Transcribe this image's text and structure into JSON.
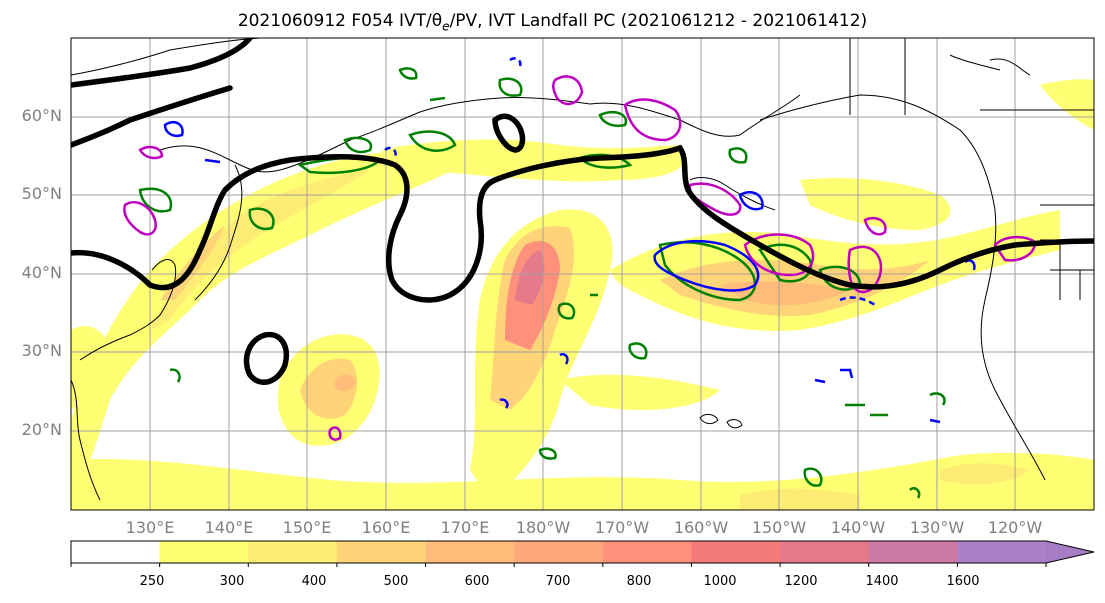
{
  "title": "2021060912 F054 IVT/θe/PV, IVT Landfall PC (2021061212 - 2021061412)",
  "map": {
    "lat_labels": [
      "60°N",
      "50°N",
      "40°N",
      "30°N",
      "20°N"
    ],
    "lon_labels": [
      "130°E",
      "140°E",
      "150°E",
      "160°E",
      "170°E",
      "180°W",
      "170°W",
      "160°W",
      "150°W",
      "140°W",
      "130°W",
      "120°W"
    ],
    "grid": true,
    "colors": {
      "ivt_contour": "#000000",
      "pv_contour_green": "#008000",
      "pv_contour_blue": "#0000ff",
      "theta_e_magenta": "#c000c0",
      "coast": "#000000",
      "grid": "#a0a0a0"
    }
  },
  "colorbar": {
    "ticks": [
      "250",
      "300",
      "400",
      "500",
      "600",
      "700",
      "800",
      "1000",
      "1200",
      "1400",
      "1600"
    ],
    "colors": [
      "#ffffff",
      "#ffff73",
      "#ffec75",
      "#ffd478",
      "#ffbc7a",
      "#ffa87c",
      "#ff917c",
      "#f57a7a",
      "#e57a8a",
      "#cc7aa3",
      "#ab80c7",
      "#a67cc2"
    ]
  }
}
